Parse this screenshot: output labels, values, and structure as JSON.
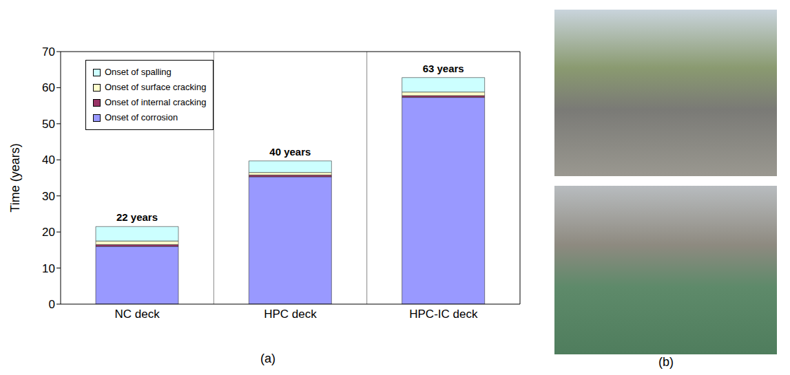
{
  "chart_data": {
    "type": "bar",
    "stacked": true,
    "categories": [
      "NC deck",
      "HPC deck",
      "HPC-IC deck"
    ],
    "series": [
      {
        "name": "Onset of corrosion",
        "color": "#9999ff",
        "values": [
          16,
          35.3,
          57.3
        ]
      },
      {
        "name": "Onset of internal cracking",
        "color": "#993366",
        "values": [
          0.5,
          0.5,
          0.5
        ]
      },
      {
        "name": "Onset of surface cracking",
        "color": "#ffffcc",
        "values": [
          1,
          0.7,
          1
        ]
      },
      {
        "name": "Onset of spalling",
        "color": "#ccffff",
        "values": [
          4,
          3.2,
          4
        ]
      }
    ],
    "annotations": [
      "22 years",
      "40 years",
      "63 years"
    ],
    "y_label": "Time (years)",
    "ylim": [
      0,
      70
    ],
    "yticks": [
      0,
      10,
      20,
      30,
      40,
      50,
      60,
      70
    ],
    "grid": true,
    "legend": "upper left"
  },
  "panel_labels": [
    "(a)",
    "(b)"
  ]
}
